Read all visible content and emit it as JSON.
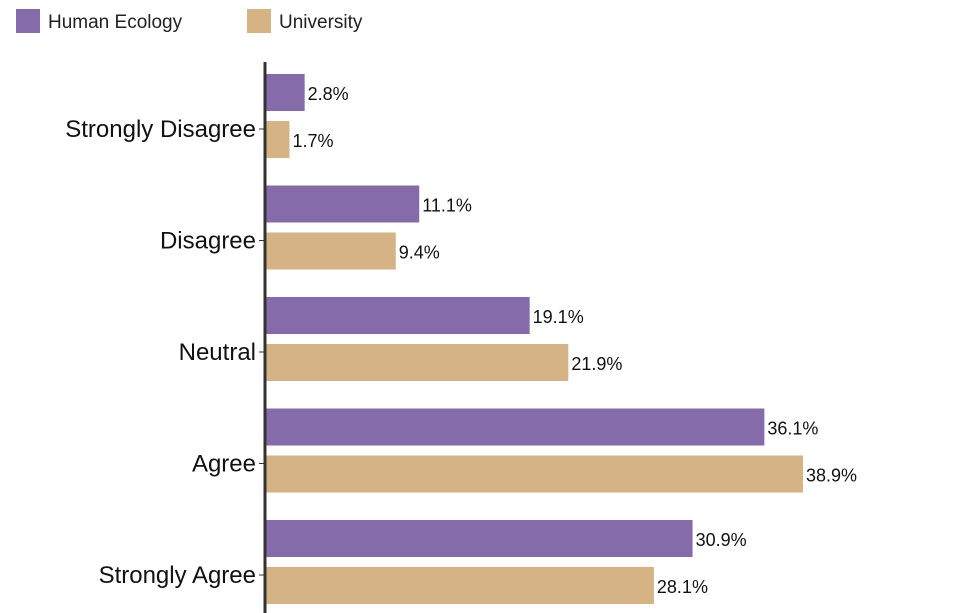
{
  "chart_data": {
    "type": "bar",
    "orientation": "horizontal",
    "categories": [
      "Strongly Disagree",
      "Disagree",
      "Neutral",
      "Agree",
      "Strongly Agree"
    ],
    "series": [
      {
        "name": "Human Ecology",
        "values": [
          2.8,
          11.1,
          19.1,
          36.1,
          30.9
        ],
        "color": "#856ba9"
      },
      {
        "name": "University",
        "values": [
          1.7,
          9.4,
          21.9,
          38.9,
          28.1
        ],
        "color": "#d5b384"
      }
    ],
    "value_suffix": "%",
    "value_labels": true,
    "legend_position": "top-left",
    "axis_color": "#333333",
    "grid": false
  }
}
